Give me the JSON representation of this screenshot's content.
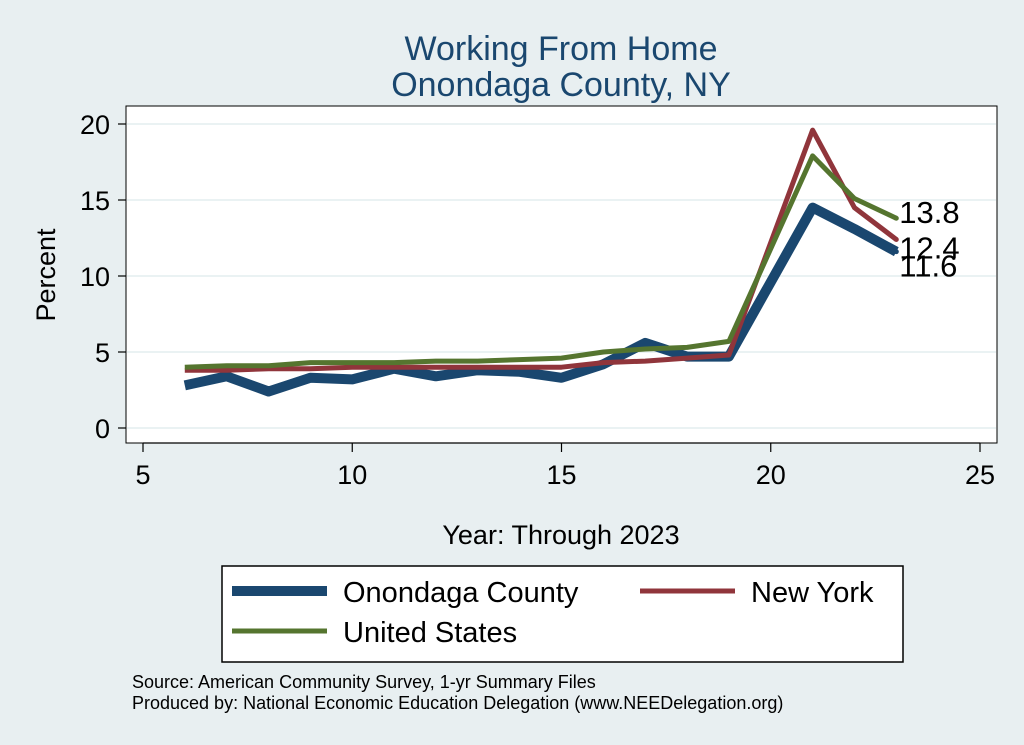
{
  "chart_data": {
    "type": "line",
    "title": "Working From Home",
    "subtitle": "Onondaga County, NY",
    "xlabel": "Year: Through 2023",
    "ylabel": "Percent",
    "xlim": [
      5,
      25
    ],
    "ylim": [
      0,
      20
    ],
    "xticks": [
      5,
      10,
      15,
      20,
      25
    ],
    "yticks": [
      0,
      5,
      10,
      15,
      20
    ],
    "grid": "horizontal",
    "legend_position": "bottom",
    "series": [
      {
        "name": "Onondaga County",
        "color": "#1a476f",
        "weight": "thick",
        "x": [
          6,
          7,
          8,
          9,
          10,
          11,
          12,
          13,
          14,
          15,
          16,
          17,
          18,
          19,
          21,
          22,
          23
        ],
        "y": [
          2.8,
          3.4,
          2.4,
          3.3,
          3.2,
          3.9,
          3.4,
          3.8,
          3.7,
          3.3,
          4.2,
          5.6,
          4.7,
          4.7,
          14.5,
          13.1,
          11.6
        ]
      },
      {
        "name": "New York",
        "color": "#90353b",
        "weight": "medium",
        "x": [
          6,
          7,
          8,
          9,
          10,
          11,
          12,
          13,
          14,
          15,
          16,
          17,
          18,
          19,
          21,
          22,
          23
        ],
        "y": [
          3.8,
          3.8,
          3.9,
          3.9,
          4.0,
          4.0,
          4.0,
          4.0,
          4.0,
          4.0,
          4.3,
          4.4,
          4.6,
          4.8,
          19.6,
          14.5,
          12.4
        ]
      },
      {
        "name": "United States",
        "color": "#55752f",
        "weight": "medium",
        "x": [
          6,
          7,
          8,
          9,
          10,
          11,
          12,
          13,
          14,
          15,
          16,
          17,
          18,
          19,
          21,
          22,
          23
        ],
        "y": [
          4.0,
          4.1,
          4.1,
          4.3,
          4.3,
          4.3,
          4.4,
          4.4,
          4.5,
          4.6,
          5.0,
          5.2,
          5.3,
          5.7,
          17.9,
          15.1,
          13.8
        ]
      }
    ],
    "end_labels": [
      {
        "series": "United States",
        "text": "13.8"
      },
      {
        "series": "New York",
        "text": "12.4"
      },
      {
        "series": "Onondaga County",
        "text": "11.6"
      }
    ],
    "legend": [
      {
        "label": "Onondaga County",
        "color": "#1a476f",
        "weight": "thick"
      },
      {
        "label": "New York",
        "color": "#90353b",
        "weight": "medium"
      },
      {
        "label": "United States",
        "color": "#55752f",
        "weight": "medium"
      }
    ],
    "notes": [
      "Source: American Community Survey, 1-yr Summary Files",
      "Produced by: National Economic Education Delegation (www.NEEDelegation.org)"
    ],
    "colors": {
      "background": "#e8eff1",
      "plot_background": "#ffffff",
      "title": "#1a476f",
      "grid": "#eaf2f3",
      "axis": "#000000"
    }
  }
}
